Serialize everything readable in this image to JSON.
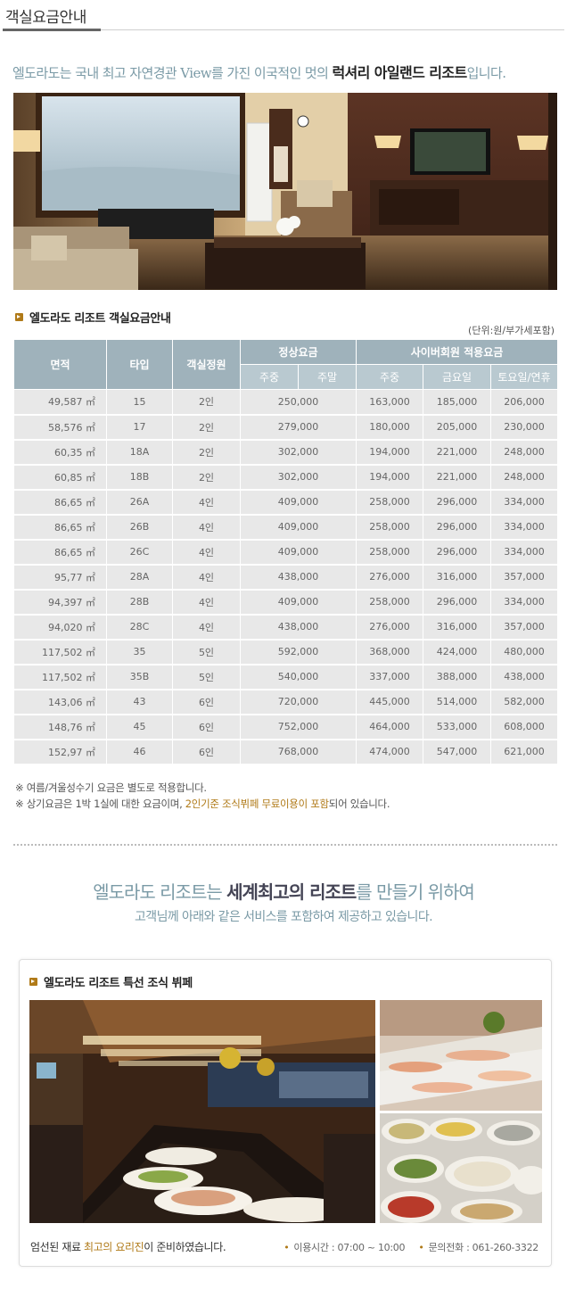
{
  "header": {
    "title": "객실요금안내"
  },
  "intro": {
    "prefix": "엘도라도는 국내 최고 자연경관 View를 가진 이국적인 멋의 ",
    "emphasis": "럭셔리 아일랜드 리조트",
    "suffix": "입니다."
  },
  "rates": {
    "section_title": "엘도라도 리조트 객실요금안내",
    "unit_note": "(단위:원/부가세포함)",
    "headers": {
      "area": "면적",
      "type": "타입",
      "capacity": "객실정원",
      "regular": "정상요금",
      "member": "사이버회원 적용요금",
      "weekday": "주중",
      "weekend": "주말",
      "friday": "금요일",
      "saturday": "토요일/연휴"
    },
    "rows": [
      [
        "49,587 ㎡",
        "15",
        "2인",
        "250,000",
        "163,000",
        "185,000",
        "206,000"
      ],
      [
        "58,576 ㎡",
        "17",
        "2인",
        "279,000",
        "180,000",
        "205,000",
        "230,000"
      ],
      [
        "60,35 ㎡",
        "18A",
        "2인",
        "302,000",
        "194,000",
        "221,000",
        "248,000"
      ],
      [
        "60,85 ㎡",
        "18B",
        "2인",
        "302,000",
        "194,000",
        "221,000",
        "248,000"
      ],
      [
        "86,65 ㎡",
        "26A",
        "4인",
        "409,000",
        "258,000",
        "296,000",
        "334,000"
      ],
      [
        "86,65 ㎡",
        "26B",
        "4인",
        "409,000",
        "258,000",
        "296,000",
        "334,000"
      ],
      [
        "86,65 ㎡",
        "26C",
        "4인",
        "409,000",
        "258,000",
        "296,000",
        "334,000"
      ],
      [
        "95,77 ㎡",
        "28A",
        "4인",
        "438,000",
        "276,000",
        "316,000",
        "357,000"
      ],
      [
        "94,397 ㎡",
        "28B",
        "4인",
        "409,000",
        "258,000",
        "296,000",
        "334,000"
      ],
      [
        "94,020 ㎡",
        "28C",
        "4인",
        "438,000",
        "276,000",
        "316,000",
        "357,000"
      ],
      [
        "117,502 ㎡",
        "35",
        "5인",
        "592,000",
        "368,000",
        "424,000",
        "480,000"
      ],
      [
        "117,502 ㎡",
        "35B",
        "5인",
        "540,000",
        "337,000",
        "388,000",
        "438,000"
      ],
      [
        "143,06 ㎡",
        "43",
        "6인",
        "720,000",
        "445,000",
        "514,000",
        "582,000"
      ],
      [
        "148,76 ㎡",
        "45",
        "6인",
        "752,000",
        "464,000",
        "533,000",
        "608,000"
      ],
      [
        "152,97 ㎡",
        "46",
        "6인",
        "768,000",
        "474,000",
        "547,000",
        "621,000"
      ]
    ]
  },
  "notes": {
    "line1": "※ 여름/겨울성수기 요금은 별도로 적용합니다.",
    "line2_prefix": "※ 상기요금은 1박 1실에 대한 요금이며, ",
    "line2_highlight": "2인기준 조식뷔페 무료이용이 포함",
    "line2_suffix": "되어 있습니다."
  },
  "services": {
    "headline_a": "엘도라도 리조트는 ",
    "headline_b": "세계최고의 리조트",
    "headline_c": "를 만들기 위하여",
    "subline": "고객님께 아래와 같은 서비스를 포함하여 제공하고 있습니다."
  },
  "buffet": {
    "title": "엘도라도 리조트 특선 조식 뷔페",
    "footer_prefix": "엄선된 재료 ",
    "footer_highlight": "최고의 요리진",
    "footer_suffix": "이 준비하였습니다.",
    "hours": "이용시간 : 07:00 ~ 10:00",
    "phone": "문의전화 : 061-260-3322"
  },
  "colors": {
    "accent": "#b07a18",
    "table_header": "#9fb2bb",
    "table_subheader": "#b9c9d0",
    "table_cell": "#e8e8e8",
    "heading_blue": "#7a9aa6"
  }
}
